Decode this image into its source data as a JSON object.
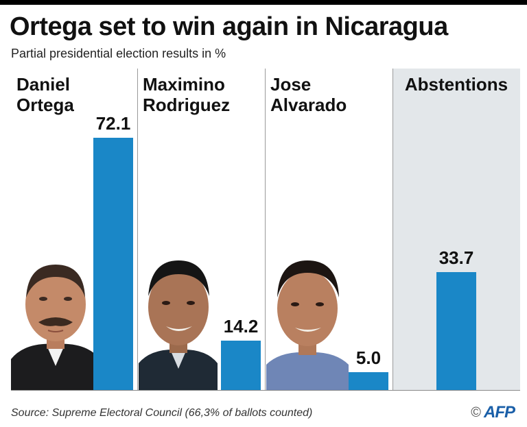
{
  "header": {
    "title": "Ortega set to win again in Nicaragua",
    "subtitle": "Partial presidential election results in %"
  },
  "footer": {
    "source": "Source: Supreme Electoral Council (66,3% of ballots counted)",
    "copyright": "©",
    "logo_text": "AFP"
  },
  "colors": {
    "bar": "#1a87c7",
    "abstentions_background": "#e3e7ea"
  },
  "chart_data": {
    "type": "bar",
    "title": "Ortega set to win again in Nicaragua",
    "subtitle": "Partial presidential election results in %",
    "categories": [
      "Daniel Ortega",
      "Maximino Rodriguez",
      "Jose Alvarado",
      "Abstentions"
    ],
    "values": [
      72.1,
      14.2,
      5.0,
      33.7
    ],
    "value_labels": [
      "72.1",
      "14.2",
      "5.0",
      "33.7"
    ],
    "display_names": [
      "Daniel\nOrtega",
      "Maximino\nRodriguez",
      "Jose\nAlvarado",
      "Abstentions"
    ],
    "unit": "%",
    "ylim": [
      0,
      80
    ],
    "grid": false,
    "legend": "none"
  }
}
